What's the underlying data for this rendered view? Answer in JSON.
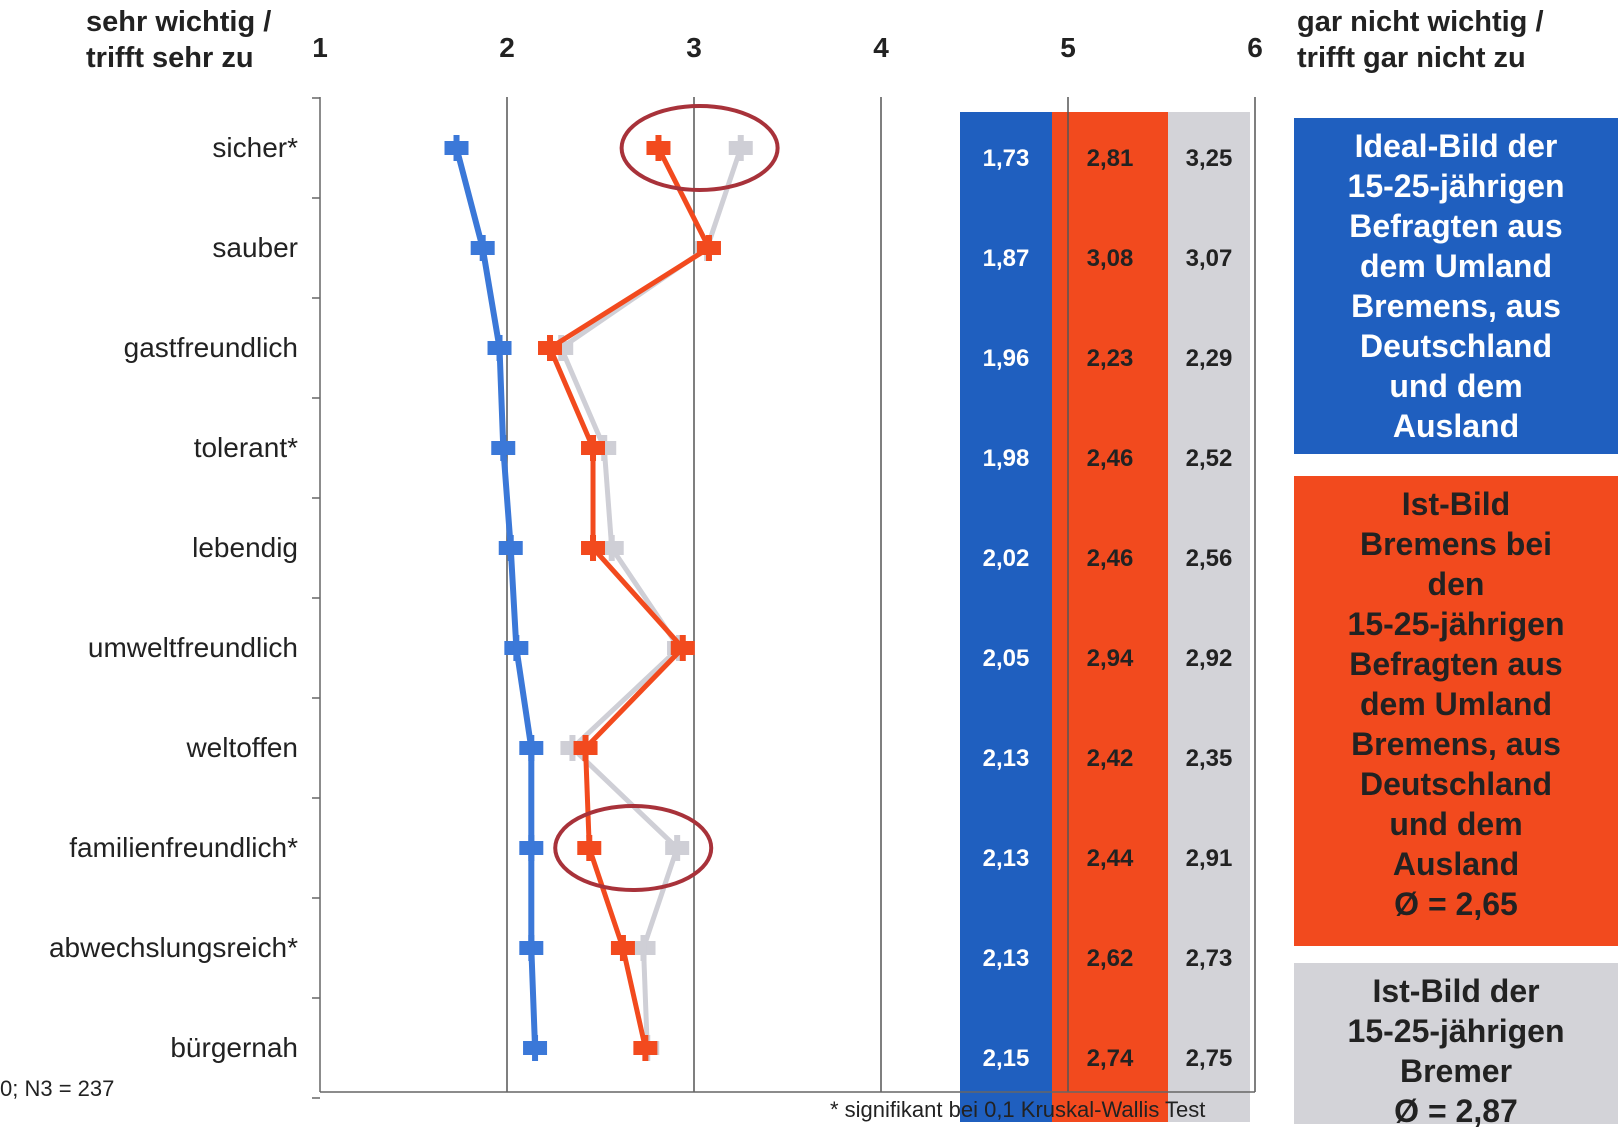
{
  "header": {
    "left": "sehr wichtig /\ntrifft sehr zu",
    "right": "gar nicht wichtig /\ntrifft gar nicht zu"
  },
  "footnote": "* signifikant bei 0,1 Kruskal-Wallis Test",
  "sample_note": "0; N3 = 237",
  "legend": [
    {
      "text": "Ideal-Bild der\n15-25-jährigen\nBefragten aus\ndem Umland\nBremens, aus\nDeutschland\nund dem\nAusland",
      "bg": "#1f5fbf",
      "fg": "#ffffff"
    },
    {
      "text": "Ist-Bild\nBremens bei\nden\n15-25-jährigen\nBefragten aus\ndem Umland\nBremens, aus\nDeutschland\nund dem\nAusland\nØ = 2,65",
      "bg": "#f24a1e",
      "fg": "#222222"
    },
    {
      "text": "Ist-Bild der\n15-25-jährigen\nBremer\nØ = 2,87",
      "bg": "#d3d3d8",
      "fg": "#222222"
    }
  ],
  "chart_data": {
    "type": "line",
    "orientation": "horizontal",
    "xlim": [
      1,
      6
    ],
    "xticks": [
      "1",
      "2",
      "3",
      "4",
      "5",
      "6"
    ],
    "categories": [
      "sicher*",
      "sauber",
      "gastfreundlich",
      "tolerant*",
      "lebendig",
      "umweltfreundlich",
      "weltoffen",
      "familienfreundlich*",
      "abwechslungsreich*",
      "bürgernah"
    ],
    "series": [
      {
        "values": [
          1.73,
          1.87,
          1.96,
          1.98,
          2.02,
          2.05,
          2.13,
          2.13,
          2.13,
          2.15
        ],
        "labels": [
          "1,73",
          "1,87",
          "1,96",
          "1,98",
          "2,02",
          "2,05",
          "2,13",
          "2,13",
          "2,13",
          "2,15"
        ],
        "color": "#3b78d8",
        "column_color": "#1f5fbf",
        "label_color": "#ffffff"
      },
      {
        "values": [
          2.81,
          3.08,
          2.23,
          2.46,
          2.46,
          2.94,
          2.42,
          2.44,
          2.62,
          2.74
        ],
        "labels": [
          "2,81",
          "3,08",
          "2,23",
          "2,46",
          "2,46",
          "2,94",
          "2,42",
          "2,44",
          "2,62",
          "2,74"
        ],
        "color": "#f24a1e",
        "column_color": "#f24a1e",
        "label_color": "#222222"
      },
      {
        "values": [
          3.25,
          3.07,
          2.29,
          2.52,
          2.56,
          2.92,
          2.35,
          2.91,
          2.73,
          2.75
        ],
        "labels": [
          "3,25",
          "3,07",
          "2,29",
          "2,52",
          "2,56",
          "2,92",
          "2,35",
          "2,91",
          "2,73",
          "2,75"
        ],
        "color": "#cfcfd6",
        "column_color": "#d3d3d8",
        "label_color": "#222222"
      }
    ],
    "highlights": [
      {
        "category_index": 0
      },
      {
        "category_index": 7
      }
    ],
    "grid": true
  }
}
